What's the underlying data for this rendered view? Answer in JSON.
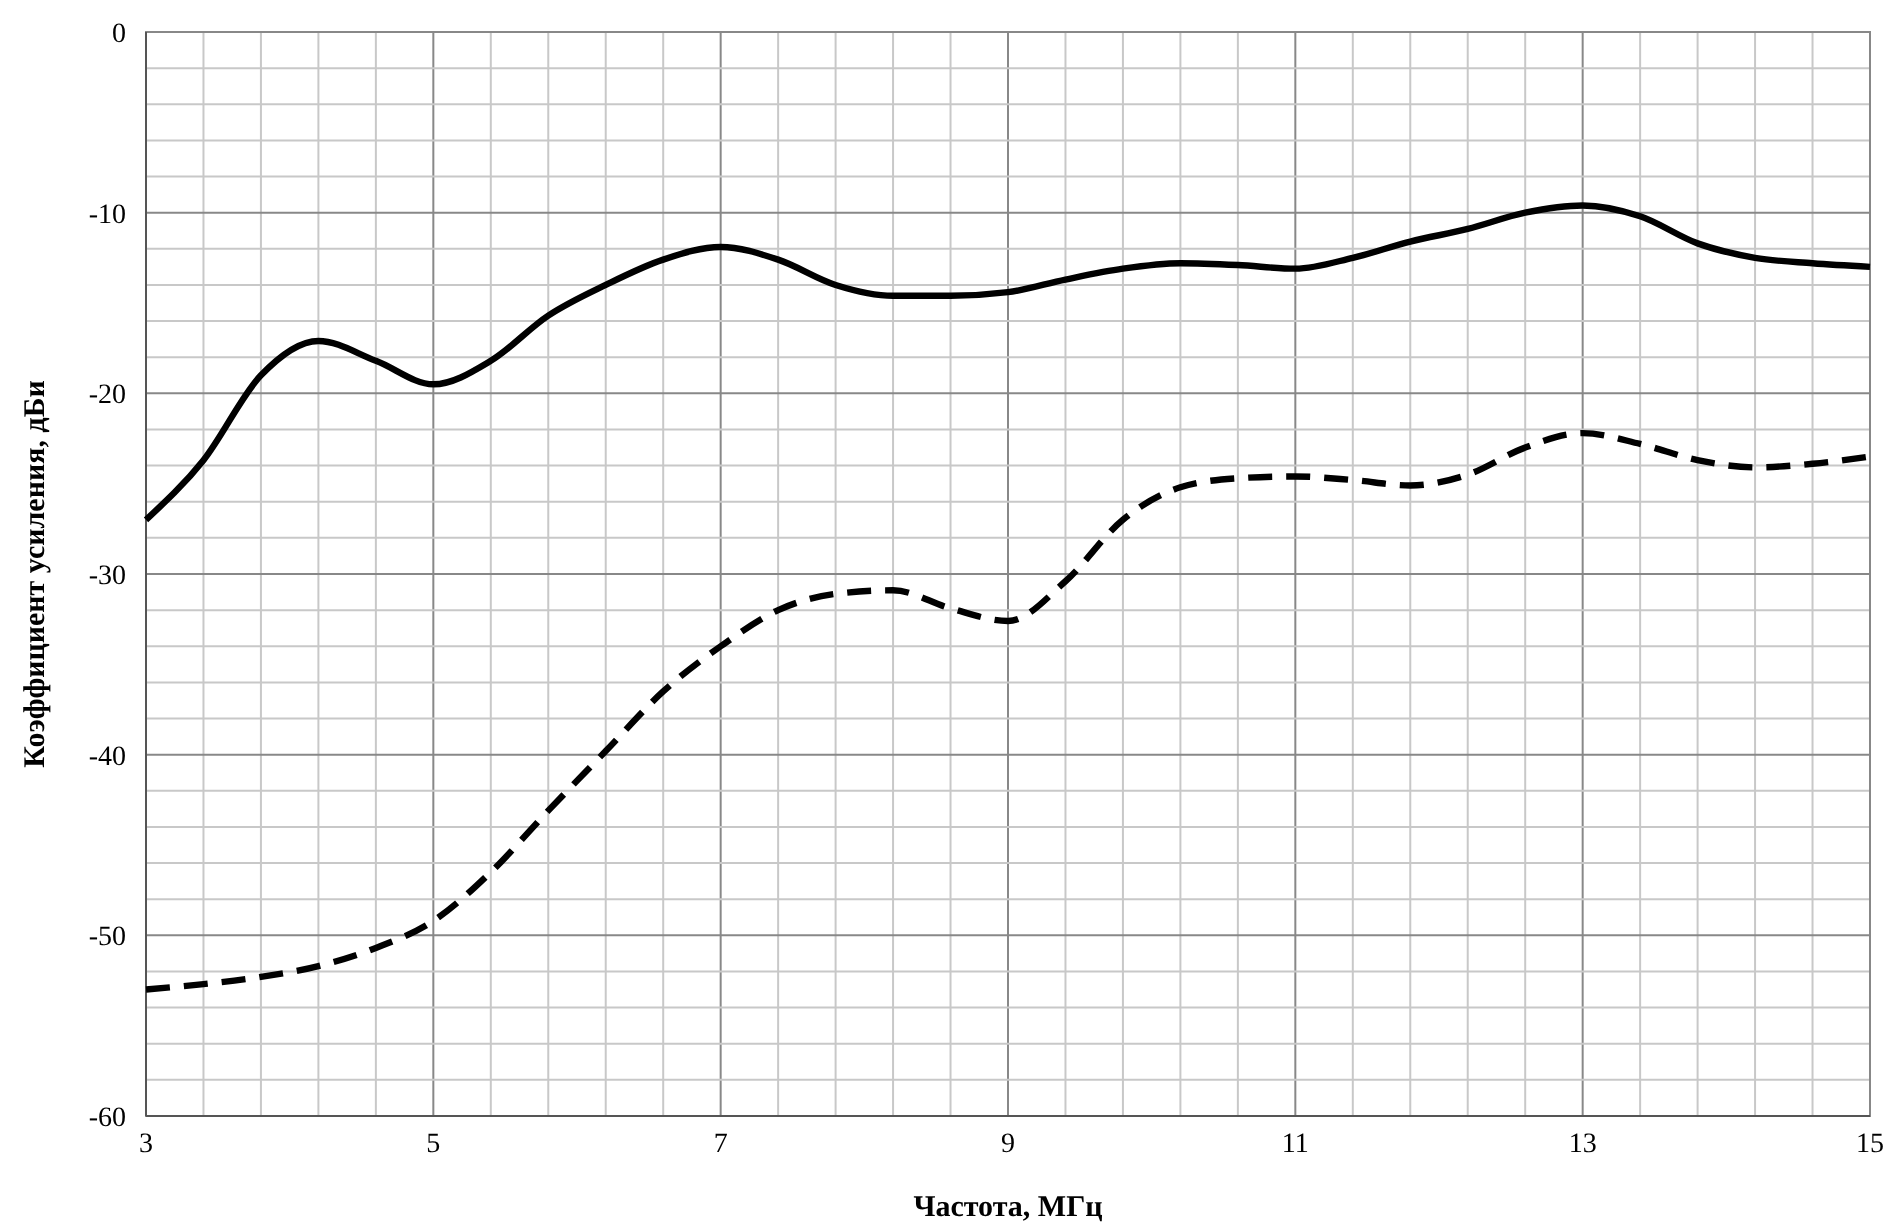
{
  "chart_data": {
    "type": "line",
    "xlabel": "Частота, МГц",
    "ylabel": "Коэффициент усиления, дБи",
    "x": [
      3,
      3.4,
      3.8,
      4.2,
      4.6,
      5,
      5.4,
      5.8,
      6.2,
      6.6,
      7,
      7.4,
      7.8,
      8.2,
      8.6,
      9,
      9.4,
      9.8,
      10.2,
      10.6,
      11,
      11.4,
      11.8,
      12.2,
      12.6,
      13,
      13.4,
      13.8,
      14.2,
      14.6,
      15
    ],
    "series": [
      {
        "color": "#000000",
        "line_style": "solid",
        "values": [
          -27,
          -23.7,
          -19,
          -17.1,
          -18.2,
          -19.5,
          -18.2,
          -15.7,
          -14,
          -12.6,
          -11.9,
          -12.6,
          -14,
          -14.6,
          -14.6,
          -14.4,
          -13.7,
          -13.1,
          -12.8,
          -12.9,
          -13.1,
          -12.5,
          -11.6,
          -10.9,
          -10,
          -9.6,
          -10.2,
          -11.7,
          -12.5,
          -12.8,
          -13
        ]
      },
      {
        "color": "#000000",
        "line_style": "dashed",
        "values": [
          -53,
          -52.7,
          -52.3,
          -51.7,
          -50.7,
          -49.2,
          -46.5,
          -43.1,
          -39.8,
          -36.5,
          -34,
          -32,
          -31.1,
          -30.9,
          -31.9,
          -32.6,
          -30.4,
          -27,
          -25.2,
          -24.7,
          -24.6,
          -24.8,
          -25.1,
          -24.5,
          -23,
          -22.2,
          -22.8,
          -23.7,
          -24.1,
          -23.9,
          -23.5
        ]
      }
    ],
    "xlim": [
      3,
      15
    ],
    "ylim": [
      -60,
      0
    ],
    "xticks": [
      3,
      {
        "value": 3.4,
        "label": null
      },
      {
        "value": 3.8,
        "label": null
      },
      {
        "value": 4.2,
        "label": null
      },
      {
        "value": 4.6,
        "label": null
      },
      5,
      {
        "value": 5.4,
        "label": null
      },
      {
        "value": 5.8,
        "label": null
      },
      {
        "value": 6.2,
        "label": null
      },
      {
        "value": 6.6,
        "label": null
      },
      7,
      {
        "value": 7.4,
        "label": null
      },
      {
        "value": 7.8,
        "label": null
      },
      {
        "value": 8.2,
        "label": null
      },
      {
        "value": 8.6,
        "label": null
      },
      9,
      {
        "value": 9.4,
        "label": null
      },
      {
        "value": 9.8,
        "label": null
      },
      {
        "value": 10.2,
        "label": null
      },
      {
        "value": 10.6,
        "label": null
      },
      11,
      {
        "value": 11.4,
        "label": null
      },
      {
        "value": 11.8,
        "label": null
      },
      {
        "value": 12.2,
        "label": null
      },
      {
        "value": 12.6,
        "label": null
      },
      13,
      {
        "value": 13.4,
        "label": null
      },
      {
        "value": 13.8,
        "label": null
      },
      {
        "value": 14.2,
        "label": null
      },
      {
        "value": 14.6,
        "label": null
      },
      15
    ],
    "yticks": [
      -60,
      {
        "value": -58,
        "label": null
      },
      {
        "value": -56,
        "label": null
      },
      {
        "value": -54,
        "label": null
      },
      {
        "value": -52,
        "label": null
      },
      -50,
      {
        "value": -48,
        "label": null
      },
      {
        "value": -46,
        "label": null
      },
      {
        "value": -44,
        "label": null
      },
      {
        "value": -42,
        "label": null
      },
      -40,
      {
        "value": -38,
        "label": null
      },
      {
        "value": -36,
        "label": null
      },
      {
        "value": -34,
        "label": null
      },
      {
        "value": -32,
        "label": null
      },
      -30,
      {
        "value": -28,
        "label": null
      },
      {
        "value": -26,
        "label": null
      },
      {
        "value": -24,
        "label": null
      },
      {
        "value": -22,
        "label": null
      },
      -20,
      {
        "value": -18,
        "label": null
      },
      {
        "value": -16,
        "label": null
      },
      {
        "value": -14,
        "label": null
      },
      {
        "value": -12,
        "label": null
      },
      -10,
      {
        "value": -8,
        "label": null
      },
      {
        "value": -6,
        "label": null
      },
      {
        "value": -4,
        "label": null
      },
      {
        "value": -2,
        "label": null
      },
      0
    ],
    "grid": true,
    "marker": "none"
  }
}
